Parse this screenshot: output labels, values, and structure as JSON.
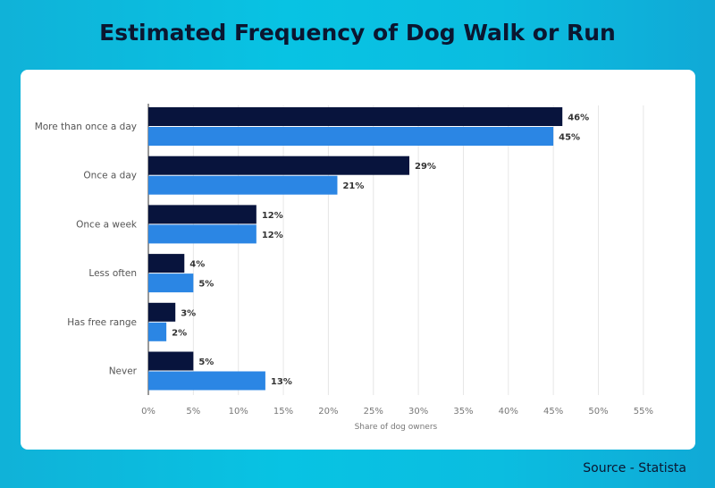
{
  "title": "Estimated Frequency of Dog Walk or Run",
  "source": "Source - Statista",
  "chart_data": {
    "type": "bar",
    "orientation": "horizontal",
    "categories": [
      "More than once a day",
      "Once a day",
      "Once a week",
      "Less often",
      "Has free range",
      "Never"
    ],
    "series": [
      {
        "color": "#08143d",
        "values": [
          46,
          29,
          12,
          4,
          3,
          5
        ]
      },
      {
        "color": "#2b86e4",
        "values": [
          45,
          21,
          12,
          5,
          2,
          13
        ]
      }
    ],
    "xlabel": "Share of dog owners",
    "xticks": [
      "0%",
      "5%",
      "10%",
      "15%",
      "20%",
      "25%",
      "30%",
      "35%",
      "40%",
      "45%",
      "50%",
      "55%"
    ],
    "xlim": [
      0,
      55
    ],
    "grid": true,
    "data_label_suffix": "%"
  }
}
